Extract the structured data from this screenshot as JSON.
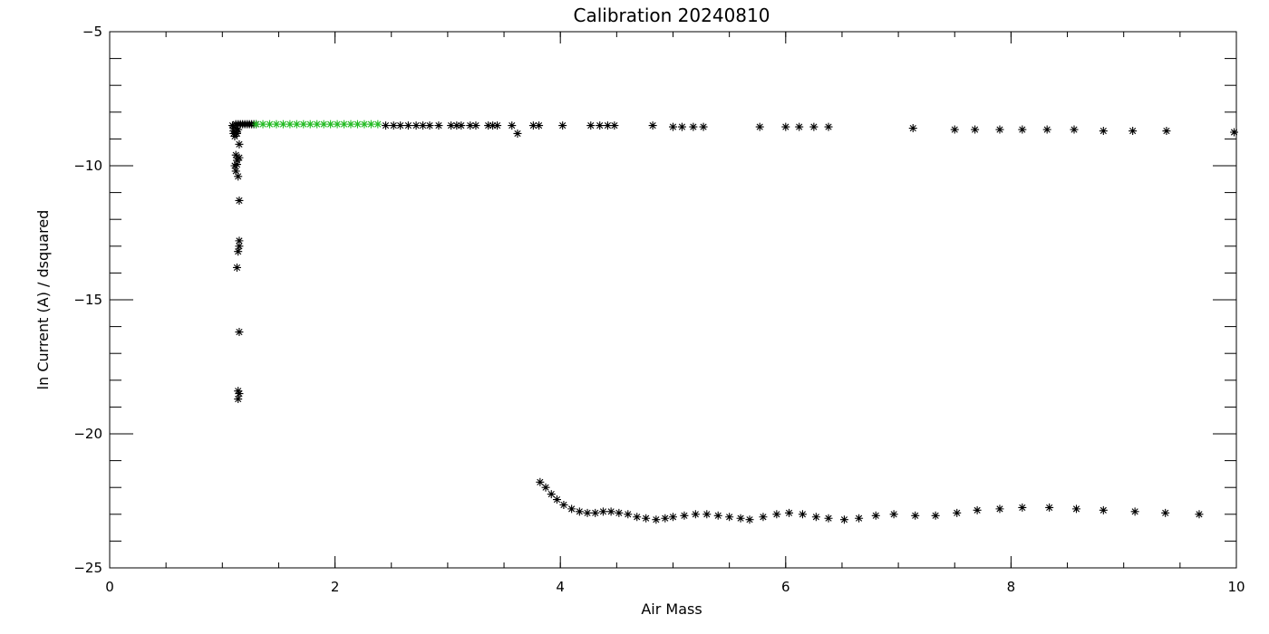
{
  "chart_data": {
    "type": "scatter",
    "title": "Calibration 20240810",
    "xlabel": "Air Mass",
    "ylabel": "ln Current (A) / dsquared",
    "xlim": [
      0,
      10
    ],
    "ylim": [
      -25,
      -5
    ],
    "x_ticks": [
      0,
      2,
      4,
      6,
      8,
      10
    ],
    "x_tick_labels": [
      "0",
      "2",
      "4",
      "6",
      "8",
      "10"
    ],
    "y_ticks": [
      -25,
      -20,
      -15,
      -10,
      -5
    ],
    "y_tick_labels": [
      "−25",
      "−20",
      "−15",
      "−10",
      "−5"
    ],
    "x_minor_step": 0.5,
    "y_minor_step": 1,
    "grid": false,
    "legend": "none",
    "marker": "asterisk",
    "series": [
      {
        "color": "#000000",
        "points": [
          [
            1.09,
            -8.5
          ],
          [
            1.1,
            -8.55
          ],
          [
            1.1,
            -8.7
          ],
          [
            1.1,
            -8.8
          ],
          [
            1.11,
            -8.9
          ],
          [
            1.12,
            -8.6
          ],
          [
            1.12,
            -8.75
          ],
          [
            1.13,
            -8.8
          ],
          [
            1.14,
            -8.65
          ],
          [
            1.15,
            -9.2
          ],
          [
            1.12,
            -9.6
          ],
          [
            1.13,
            -9.8
          ],
          [
            1.11,
            -10.0
          ],
          [
            1.12,
            -10.2
          ],
          [
            1.14,
            -10.4
          ],
          [
            1.13,
            -9.95
          ],
          [
            1.15,
            -9.7
          ],
          [
            1.15,
            -11.3
          ],
          [
            1.15,
            -12.8
          ],
          [
            1.15,
            -13.0
          ],
          [
            1.14,
            -13.2
          ],
          [
            1.13,
            -13.8
          ],
          [
            1.15,
            -16.2
          ],
          [
            1.14,
            -18.4
          ],
          [
            1.15,
            -18.5
          ],
          [
            1.14,
            -18.7
          ],
          [
            1.12,
            -8.45
          ],
          [
            1.14,
            -8.45
          ],
          [
            1.16,
            -8.45
          ],
          [
            1.18,
            -8.45
          ],
          [
            1.2,
            -8.45
          ],
          [
            1.22,
            -8.45
          ],
          [
            1.24,
            -8.45
          ],
          [
            1.26,
            -8.45
          ],
          [
            1.28,
            -8.45
          ],
          [
            1.3,
            -8.45
          ],
          [
            2.45,
            -8.5
          ],
          [
            2.52,
            -8.5
          ],
          [
            2.58,
            -8.5
          ],
          [
            2.65,
            -8.5
          ],
          [
            2.72,
            -8.5
          ],
          [
            2.78,
            -8.5
          ],
          [
            2.84,
            -8.5
          ],
          [
            2.92,
            -8.5
          ],
          [
            3.03,
            -8.5
          ],
          [
            3.08,
            -8.5
          ],
          [
            3.12,
            -8.5
          ],
          [
            3.2,
            -8.5
          ],
          [
            3.25,
            -8.5
          ],
          [
            3.36,
            -8.5
          ],
          [
            3.4,
            -8.5
          ],
          [
            3.44,
            -8.5
          ],
          [
            3.57,
            -8.5
          ],
          [
            3.62,
            -8.8
          ],
          [
            3.76,
            -8.5
          ],
          [
            3.81,
            -8.5
          ],
          [
            4.02,
            -8.5
          ],
          [
            4.27,
            -8.5
          ],
          [
            4.35,
            -8.5
          ],
          [
            4.42,
            -8.5
          ],
          [
            4.48,
            -8.5
          ],
          [
            4.82,
            -8.5
          ],
          [
            5.0,
            -8.55
          ],
          [
            5.08,
            -8.55
          ],
          [
            5.18,
            -8.55
          ],
          [
            5.27,
            -8.55
          ],
          [
            5.77,
            -8.55
          ],
          [
            6.0,
            -8.55
          ],
          [
            6.12,
            -8.55
          ],
          [
            6.25,
            -8.55
          ],
          [
            6.38,
            -8.55
          ],
          [
            7.13,
            -8.6
          ],
          [
            7.5,
            -8.65
          ],
          [
            7.68,
            -8.65
          ],
          [
            7.9,
            -8.65
          ],
          [
            8.1,
            -8.65
          ],
          [
            8.32,
            -8.65
          ],
          [
            8.56,
            -8.65
          ],
          [
            8.82,
            -8.7
          ],
          [
            9.08,
            -8.7
          ],
          [
            9.38,
            -8.7
          ],
          [
            9.98,
            -8.75
          ],
          [
            3.82,
            -21.8
          ],
          [
            3.87,
            -22.0
          ],
          [
            3.92,
            -22.25
          ],
          [
            3.97,
            -22.45
          ],
          [
            4.03,
            -22.65
          ],
          [
            4.1,
            -22.8
          ],
          [
            4.17,
            -22.9
          ],
          [
            4.24,
            -22.95
          ],
          [
            4.31,
            -22.95
          ],
          [
            4.38,
            -22.9
          ],
          [
            4.45,
            -22.9
          ],
          [
            4.52,
            -22.95
          ],
          [
            4.6,
            -23.0
          ],
          [
            4.68,
            -23.1
          ],
          [
            4.76,
            -23.15
          ],
          [
            4.85,
            -23.2
          ],
          [
            4.93,
            -23.15
          ],
          [
            5.0,
            -23.1
          ],
          [
            5.1,
            -23.05
          ],
          [
            5.2,
            -23.0
          ],
          [
            5.3,
            -23.0
          ],
          [
            5.4,
            -23.05
          ],
          [
            5.5,
            -23.1
          ],
          [
            5.6,
            -23.15
          ],
          [
            5.68,
            -23.2
          ],
          [
            5.8,
            -23.1
          ],
          [
            5.92,
            -23.0
          ],
          [
            6.03,
            -22.95
          ],
          [
            6.15,
            -23.0
          ],
          [
            6.27,
            -23.1
          ],
          [
            6.38,
            -23.15
          ],
          [
            6.52,
            -23.2
          ],
          [
            6.65,
            -23.15
          ],
          [
            6.8,
            -23.05
          ],
          [
            6.96,
            -23.0
          ],
          [
            7.15,
            -23.05
          ],
          [
            7.33,
            -23.05
          ],
          [
            7.52,
            -22.95
          ],
          [
            7.7,
            -22.85
          ],
          [
            7.9,
            -22.8
          ],
          [
            8.1,
            -22.75
          ],
          [
            8.34,
            -22.75
          ],
          [
            8.58,
            -22.8
          ],
          [
            8.82,
            -22.85
          ],
          [
            9.1,
            -22.9
          ],
          [
            9.37,
            -22.95
          ],
          [
            9.67,
            -23.0
          ]
        ]
      },
      {
        "color": "#22bb22",
        "points": [
          [
            1.3,
            -8.45
          ],
          [
            1.36,
            -8.45
          ],
          [
            1.42,
            -8.45
          ],
          [
            1.48,
            -8.45
          ],
          [
            1.54,
            -8.45
          ],
          [
            1.6,
            -8.45
          ],
          [
            1.66,
            -8.45
          ],
          [
            1.72,
            -8.45
          ],
          [
            1.78,
            -8.45
          ],
          [
            1.84,
            -8.45
          ],
          [
            1.9,
            -8.45
          ],
          [
            1.96,
            -8.45
          ],
          [
            2.02,
            -8.45
          ],
          [
            2.08,
            -8.45
          ],
          [
            2.14,
            -8.45
          ],
          [
            2.2,
            -8.45
          ],
          [
            2.26,
            -8.45
          ],
          [
            2.32,
            -8.45
          ],
          [
            2.38,
            -8.45
          ]
        ]
      }
    ]
  }
}
